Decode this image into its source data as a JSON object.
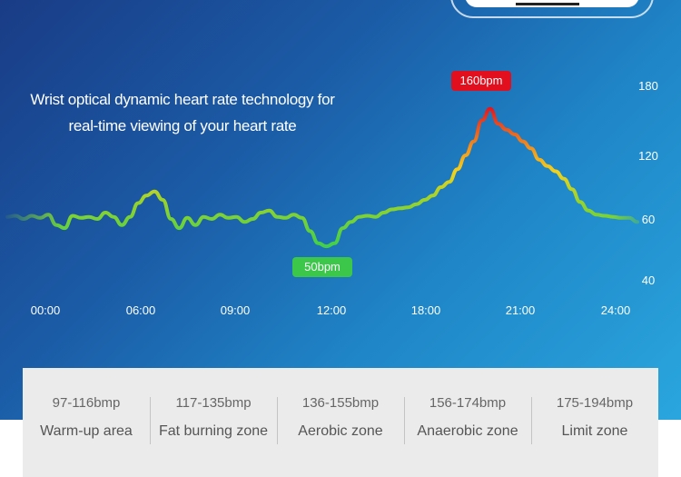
{
  "headline": {
    "line1": "Wrist optical dynamic heart rate technology for",
    "line2": "real-time viewing of your heart rate"
  },
  "callouts": {
    "max": "160bpm",
    "min": "50bpm"
  },
  "chart_data": {
    "type": "line",
    "title": "",
    "xlabel": "",
    "ylabel": "",
    "x_ticks": [
      "00:00",
      "06:00",
      "09:00",
      "12:00",
      "18:00",
      "21:00",
      "24:00"
    ],
    "y_ticks": [
      "40",
      "60",
      "120",
      "180"
    ],
    "grid": false,
    "legend": "none",
    "series": [
      {
        "values": [
          62,
          63,
          60,
          63,
          61,
          64,
          58,
          57,
          63,
          61,
          62,
          60,
          66,
          62,
          58,
          62,
          75,
          82,
          86,
          78,
          60,
          57,
          61,
          58,
          62,
          60,
          64,
          61,
          62,
          59,
          60,
          66,
          68,
          62,
          61,
          64,
          61,
          56,
          52,
          51,
          52,
          57,
          59,
          62,
          63,
          62,
          66,
          69,
          70,
          71,
          74,
          78,
          82,
          90,
          95,
          107,
          120,
          132,
          150,
          160,
          147,
          142,
          138,
          132,
          126,
          116,
          110,
          105,
          98,
          88,
          76,
          68,
          64,
          63,
          62,
          61,
          61,
          59
        ]
      }
    ],
    "annotations": [
      {
        "label": "160bpm",
        "value": 160
      },
      {
        "label": "50bpm",
        "value": 50
      }
    ]
  },
  "zones": [
    {
      "range": "97-116bmp",
      "name": "Warm-up area"
    },
    {
      "range": "117-135bmp",
      "name": "Fat burning zone"
    },
    {
      "range": "136-155bmp",
      "name": "Aerobic zone"
    },
    {
      "range": "156-174bmp",
      "name": "Anaerobic zone"
    },
    {
      "range": "175-194bmp",
      "name": "Limit zone"
    }
  ]
}
